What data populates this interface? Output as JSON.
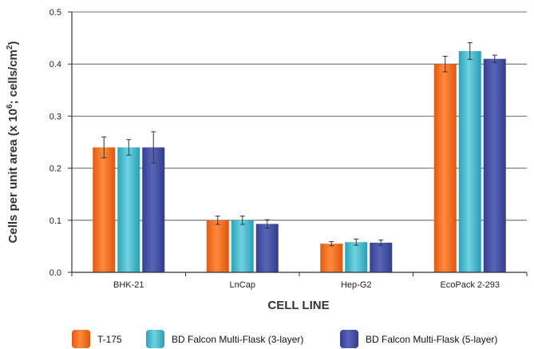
{
  "chart_data": {
    "type": "bar",
    "title": "",
    "xlabel": "CELL LINE",
    "ylabel": "Cells per unit area (x 10^6; cells/cm^2)",
    "ylabel_parts": {
      "main": "Cells per unit area (x 10",
      "exp1": "6",
      "mid": "; cells/cm",
      "exp2": "2",
      "end": ")"
    },
    "categories": [
      "BHK-21",
      "LnCap",
      "Hep-G2",
      "EcoPack 2-293"
    ],
    "ylim": [
      0,
      0.5
    ],
    "yticks": [
      "0.0",
      "0.1",
      "0.2",
      "0.3",
      "0.4",
      "0.5"
    ],
    "grid": true,
    "legend_position": "bottom",
    "series": [
      {
        "name": "T-175",
        "color": "#f26b21",
        "values": [
          0.24,
          0.1,
          0.055,
          0.4
        ],
        "errors": [
          0.02,
          0.008,
          0.004,
          0.015
        ]
      },
      {
        "name": "BD Falcon Multi-Flask (3-layer)",
        "color": "#3bbbd0",
        "values": [
          0.24,
          0.1,
          0.058,
          0.425
        ],
        "errors": [
          0.015,
          0.008,
          0.006,
          0.016
        ]
      },
      {
        "name": "BD Falcon Multi-Flask (5-layer)",
        "color": "#3f4aa0",
        "values": [
          0.24,
          0.093,
          0.057,
          0.41
        ],
        "errors": [
          0.03,
          0.008,
          0.005,
          0.007
        ]
      }
    ]
  }
}
